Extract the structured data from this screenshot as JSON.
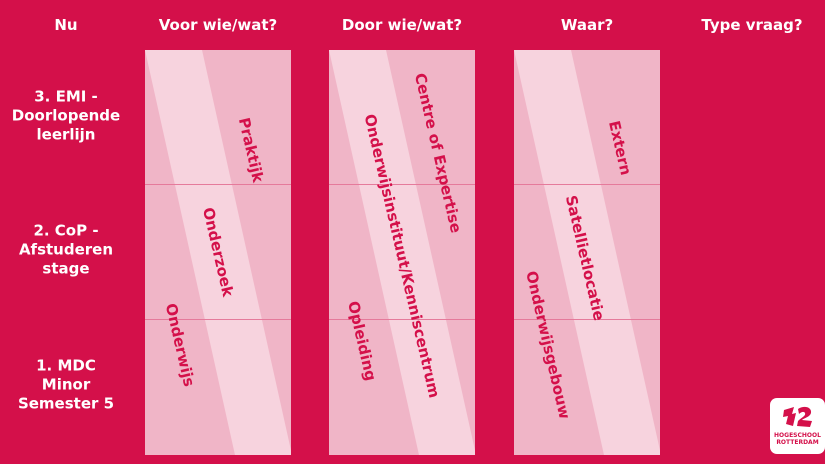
{
  "headers": [
    "Nu",
    "Voor wie/wat?",
    "Door wie/wat?",
    "Waar?",
    "Type vraag?"
  ],
  "rows": [
    {
      "label": "3. EMI -\nDoorlopende\nleerlijn"
    },
    {
      "label": "2. CoP -\nAfstuderen\nstage"
    },
    {
      "label": "1. MDC\nMinor\nSemester 5"
    }
  ],
  "columns": [
    {
      "labels": [
        "Praktijk",
        "Onderzoek",
        "Onderwijs"
      ]
    },
    {
      "labels": [
        "Centre of Expertise",
        "Onderwijsinstituut/Kenniscentrum",
        "Opleiding"
      ]
    },
    {
      "labels": [
        "Extern",
        "Satellietlocatie",
        "Onderwijsgebouw"
      ]
    }
  ],
  "logo": {
    "text": "HOGESCHOOL ROTTERDAM"
  },
  "colors": {
    "background": "#d4104a",
    "column": "#f0b5c7",
    "band": "#f7d3de",
    "text_accent": "#d4104a"
  }
}
